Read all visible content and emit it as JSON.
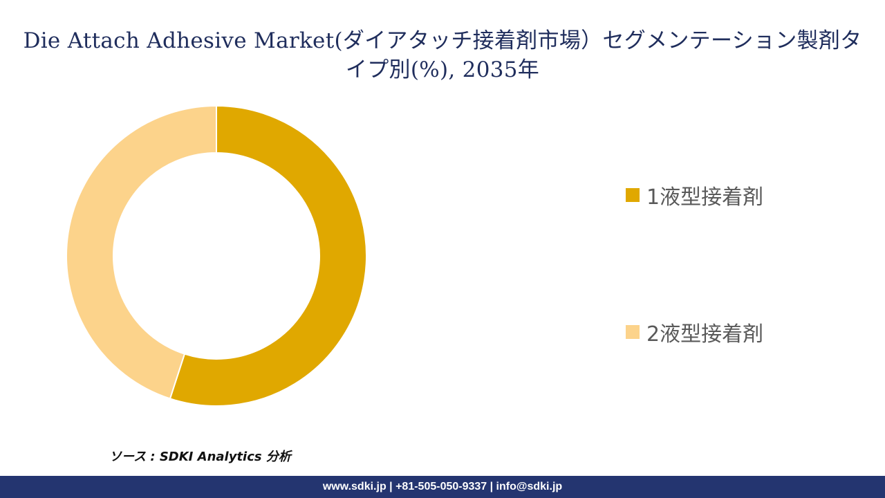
{
  "title": "Die Attach Adhesive Market(ダイアタッチ接着剤市場）セグメンテーション製剤タイプ別(%), 2035年",
  "chart_data": {
    "type": "pie",
    "donut": true,
    "categories": [
      "1液型接着剤",
      "2液型接着剤"
    ],
    "values": [
      55,
      45
    ],
    "colors": [
      "#e0a800",
      "#fcd38b"
    ],
    "legend_position": "right"
  },
  "source": "ソース : SDKI Analytics 分析",
  "footer": "www.sdki.jp | +81-505-050-9337 | info@sdki.jp"
}
